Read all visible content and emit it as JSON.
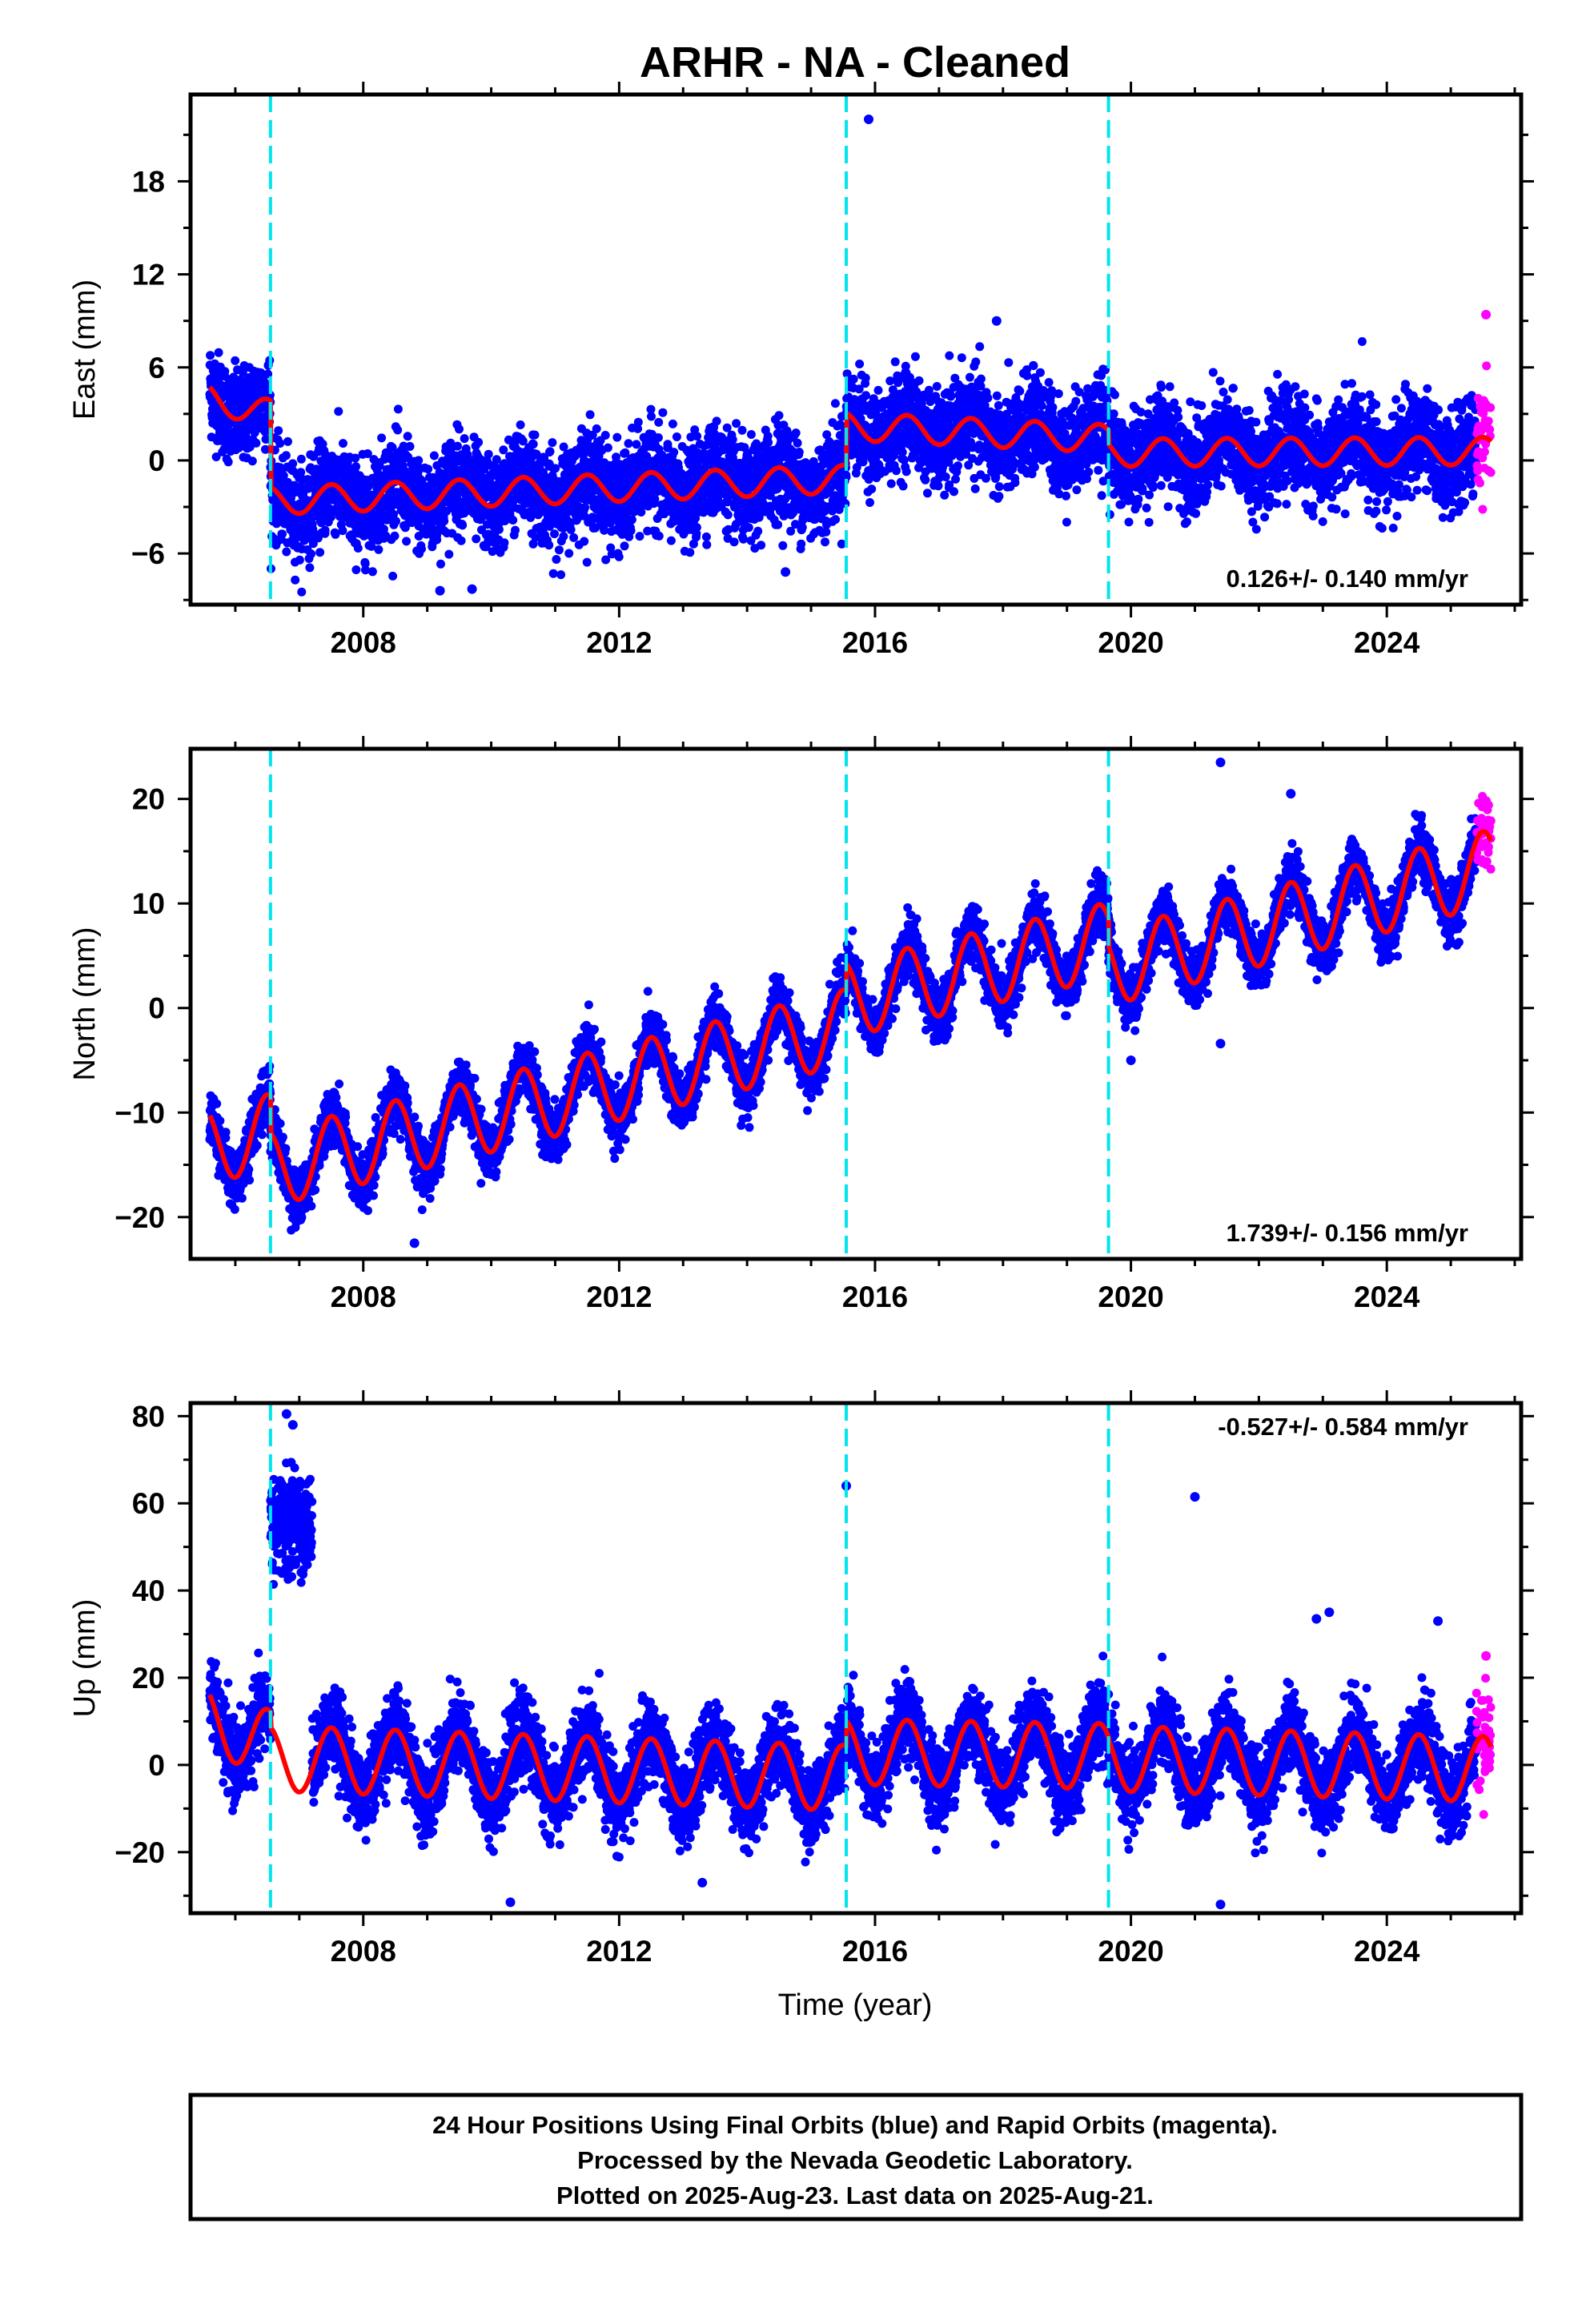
{
  "title": "ARHR  - NA - Cleaned",
  "colors": {
    "final_orbits": "#0000ff",
    "rapid_orbits": "#ff00ff",
    "model": "#ff0000",
    "breaks": "#00e5ee"
  },
  "footer": {
    "line1": "24 Hour Positions Using Final Orbits (blue) and Rapid Orbits (magenta).",
    "line2": "Processed by the Nevada Geodetic Laboratory.",
    "line3": "Plotted on 2025-Aug-23. Last data on 2025-Aug-21."
  },
  "xlabel": "Time (year)",
  "chart_data": [
    {
      "type": "scatter",
      "component": "East",
      "ylabel": "East (mm)",
      "rate": "0.126+/- 0.140 mm/yr",
      "xlim": [
        2005.3,
        2026.1
      ],
      "ylim": [
        -9.3,
        23.6
      ],
      "xticks": [
        2008,
        2012,
        2016,
        2020,
        2024
      ],
      "yticks": [
        -6,
        0,
        6,
        12,
        18
      ],
      "breaks": [
        2006.55,
        2015.55,
        2019.65
      ],
      "data_range": [
        2005.6,
        2025.4
      ],
      "rapid_range": [
        2025.4,
        2025.63
      ],
      "trend_segments": [
        {
          "start": 2005.6,
          "end": 2006.55,
          "v0": 4.0,
          "v1": 3.0
        },
        {
          "start": 2006.55,
          "end": 2015.55,
          "v0": -2.6,
          "v1": -1.2
        },
        {
          "start": 2015.55,
          "end": 2019.65,
          "v0": 2.2,
          "v1": 1.4
        },
        {
          "start": 2019.65,
          "end": 2025.63,
          "v0": 0.5,
          "v1": 0.6
        }
      ],
      "seasonal_amplitude": 0.9,
      "scatter_sd": 1.5,
      "outliers": [
        [
          2015.9,
          22.0
        ],
        [
          2017.9,
          9.0
        ],
        [
          2014.6,
          -7.2
        ],
        [
          2009.2,
          -8.4
        ],
        [
          2009.7,
          -8.3
        ],
        [
          2025.55,
          9.4
        ]
      ]
    },
    {
      "type": "scatter",
      "component": "North",
      "ylabel": "North (mm)",
      "rate": "1.739+/- 0.156 mm/yr",
      "xlim": [
        2005.3,
        2026.1
      ],
      "ylim": [
        -24.0,
        24.8
      ],
      "xticks": [
        2008,
        2012,
        2016,
        2020,
        2024
      ],
      "yticks": [
        -20,
        -10,
        0,
        10,
        20
      ],
      "breaks": [
        2006.55,
        2015.55,
        2019.65
      ],
      "data_range": [
        2005.6,
        2025.4
      ],
      "rapid_range": [
        2025.4,
        2025.63
      ],
      "trend_segments": [
        {
          "start": 2005.6,
          "end": 2006.55,
          "v0": -13.2,
          "v1": -11.8
        },
        {
          "start": 2006.55,
          "end": 2015.55,
          "v0": -15.4,
          "v1": -1.8
        },
        {
          "start": 2015.55,
          "end": 2019.65,
          "v0": 0.8,
          "v1": 6.5
        },
        {
          "start": 2019.65,
          "end": 2025.63,
          "v0": 3.8,
          "v1": 13.5
        }
      ],
      "seasonal_amplitude": 3.6,
      "scatter_sd": 1.3,
      "outliers": [
        [
          2021.4,
          23.5
        ],
        [
          2022.5,
          20.5
        ],
        [
          2021.4,
          -3.4
        ],
        [
          2020.0,
          -5.0
        ],
        [
          2008.8,
          -22.5
        ],
        [
          2025.55,
          19.8
        ]
      ]
    },
    {
      "type": "scatter",
      "component": "Up",
      "ylabel": "Up (mm)",
      "rate": "-0.527+/- 0.584 mm/yr",
      "xlim": [
        2005.3,
        2026.1
      ],
      "ylim": [
        -34.0,
        83.0
      ],
      "xticks": [
        2008,
        2012,
        2016,
        2020,
        2024
      ],
      "yticks": [
        -20,
        0,
        20,
        40,
        60,
        80
      ],
      "breaks": [
        2006.55,
        2015.55,
        2019.65
      ],
      "data_range": [
        2005.6,
        2025.4
      ],
      "rapid_range": [
        2025.4,
        2025.63
      ],
      "trend_segments": [
        {
          "start": 2005.6,
          "end": 2006.55,
          "v0": 10.0,
          "v1": 5.0
        },
        {
          "start": 2006.55,
          "end": 2015.55,
          "v0": 1.5,
          "v1": -3.0
        },
        {
          "start": 2015.55,
          "end": 2019.65,
          "v0": 3.0,
          "v1": 2.0
        },
        {
          "start": 2019.65,
          "end": 2025.63,
          "v0": 1.5,
          "v1": -1.0
        }
      ],
      "seasonal_amplitude": 7.5,
      "scatter_sd": 4.5,
      "anomaly_cluster": {
        "start": 2006.55,
        "end": 2007.2,
        "mean": 55.0,
        "sd": 6.0
      },
      "outliers": [
        [
          2006.8,
          80.5
        ],
        [
          2006.9,
          78.0
        ],
        [
          2015.55,
          64.0
        ],
        [
          2021.0,
          61.5
        ],
        [
          2023.1,
          35.0
        ],
        [
          2022.9,
          33.5
        ],
        [
          2024.8,
          33.0
        ],
        [
          2010.3,
          -31.5
        ],
        [
          2021.4,
          -32.0
        ],
        [
          2013.3,
          -27.0
        ],
        [
          2025.55,
          25.0
        ]
      ]
    }
  ]
}
